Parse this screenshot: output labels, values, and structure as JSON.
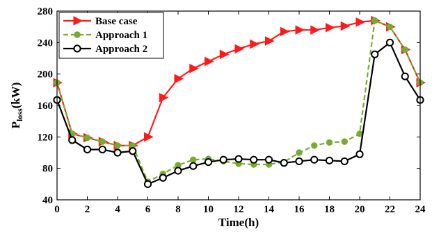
{
  "chart_data": {
    "type": "line",
    "xlabel": "Time(h)",
    "ylabel_main": "P",
    "ylabel_sub": "loss",
    "ylabel_unit": "(kW)",
    "xlim": [
      0,
      24
    ],
    "ylim": [
      40,
      280
    ],
    "xticks": [
      0,
      2,
      4,
      6,
      8,
      10,
      12,
      14,
      16,
      18,
      20,
      22,
      24
    ],
    "yticks": [
      40,
      80,
      120,
      160,
      200,
      240,
      280
    ],
    "grid": false,
    "legend_position": "top-left",
    "x": [
      0,
      1,
      2,
      3,
      4,
      5,
      6,
      7,
      8,
      9,
      10,
      11,
      12,
      13,
      14,
      15,
      16,
      17,
      18,
      19,
      20,
      21,
      22,
      23,
      24
    ],
    "series": [
      {
        "name": "Base case",
        "color": "#ff1a1a",
        "marker": "triangle-right",
        "line": "solid",
        "values": [
          189,
          124,
          119,
          114,
          109,
          109,
          120,
          170,
          194,
          207,
          216,
          225,
          232,
          238,
          242,
          254,
          256,
          256,
          259,
          261,
          266,
          268,
          260,
          231,
          189
        ]
      },
      {
        "name": "Approach 1",
        "color": "#77ac30",
        "marker": "circle-filled",
        "line": "dashed",
        "values": [
          189,
          124,
          119,
          114,
          109,
          109,
          63,
          73,
          84,
          91,
          92,
          89,
          86,
          85,
          85,
          88,
          100,
          109,
          113,
          114,
          124,
          268,
          260,
          231,
          189
        ]
      },
      {
        "name": "Approach 2",
        "color": "#000000",
        "marker": "circle-open",
        "line": "solid",
        "values": [
          167,
          116,
          104,
          104,
          100,
          102,
          60,
          68,
          77,
          83,
          88,
          91,
          92,
          91,
          91,
          87,
          89,
          91,
          90,
          89,
          98,
          225,
          240,
          197,
          167
        ]
      }
    ]
  }
}
